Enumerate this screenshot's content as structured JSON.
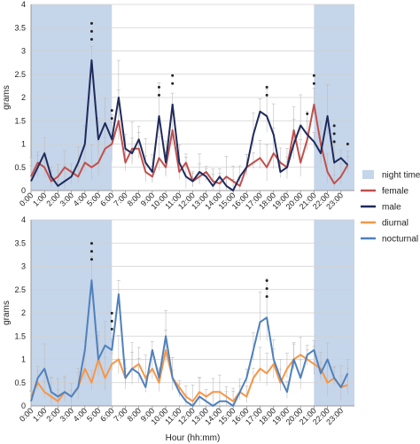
{
  "chart_data": [
    {
      "type": "line",
      "ylabel": "grams",
      "ylim": [
        0,
        4
      ],
      "y_ticks": [
        "0",
        "0.5",
        "1",
        "1.5",
        "2",
        "2.5",
        "3",
        "3.5",
        "4"
      ],
      "x_ticks": [
        "0:00",
        "1:00",
        "2:00",
        "3:00",
        "4:00",
        "5:00",
        "6:00",
        "7:00",
        "8:00",
        "9:00",
        "10:00",
        "11:00",
        "12:00",
        "13:00",
        "14:00",
        "15:00",
        "16:00",
        "17:00",
        "18:00",
        "19:00",
        "20:00",
        "21:00",
        "22:00",
        "23:00"
      ],
      "grid": true,
      "night_shading_hours": [
        [
          0,
          6
        ],
        [
          21,
          24
        ]
      ],
      "x": [
        0,
        0.5,
        1,
        1.5,
        2,
        2.5,
        3,
        3.5,
        4,
        4.5,
        5,
        5.5,
        6,
        6.5,
        7,
        7.5,
        8,
        8.5,
        9,
        9.5,
        10,
        10.5,
        11,
        11.5,
        12,
        12.5,
        13,
        13.5,
        14,
        14.5,
        15,
        15.5,
        16,
        16.5,
        17,
        17.5,
        18,
        18.5,
        19,
        19.5,
        20,
        20.5,
        21,
        21.5,
        22,
        22.5,
        23,
        23.5
      ],
      "series": [
        {
          "name": "female",
          "color": "#c0504d",
          "values": [
            0.3,
            0.6,
            0.5,
            0.2,
            0.3,
            0.5,
            0.4,
            0.3,
            0.6,
            0.5,
            0.6,
            0.9,
            1.0,
            1.5,
            0.6,
            0.9,
            0.9,
            0.4,
            0.3,
            0.7,
            0.5,
            1.3,
            0.4,
            0.6,
            0.2,
            0.3,
            0.4,
            0.2,
            0.15,
            0.3,
            0.2,
            0.1,
            0.5,
            0.6,
            0.7,
            0.5,
            0.8,
            0.6,
            0.5,
            1.3,
            0.6,
            1.1,
            1.85,
            1.0,
            0.4,
            0.15,
            0.3,
            0.55
          ]
        },
        {
          "name": "male",
          "color": "#1f2a5c",
          "values": [
            0.2,
            0.5,
            0.8,
            0.3,
            0.1,
            0.2,
            0.3,
            0.6,
            1.0,
            2.8,
            1.1,
            1.45,
            1.1,
            2.0,
            0.9,
            0.8,
            1.1,
            0.6,
            0.4,
            1.6,
            0.6,
            1.85,
            0.6,
            0.3,
            0.2,
            0.4,
            0.3,
            0.1,
            0.3,
            0.1,
            0.0,
            0.3,
            0.5,
            1.2,
            1.7,
            1.6,
            1.2,
            0.4,
            0.5,
            1.0,
            1.4,
            1.2,
            1.05,
            0.8,
            1.6,
            0.6,
            0.7,
            0.55
          ]
        }
      ],
      "significance_markers": [
        {
          "x": 4.5,
          "label": "***"
        },
        {
          "x": 6,
          "label": "**"
        },
        {
          "x": 9.5,
          "label": "**"
        },
        {
          "x": 10.5,
          "label": "**"
        },
        {
          "x": 17.5,
          "label": "**"
        },
        {
          "x": 20.5,
          "label": "*"
        },
        {
          "x": 21,
          "label": "**"
        },
        {
          "x": 22.5,
          "label": "***"
        },
        {
          "x": 23.5,
          "label": "*"
        }
      ]
    },
    {
      "type": "line",
      "ylabel": "grams",
      "xlabel": "Hour (hh:mm)",
      "ylim": [
        0,
        4
      ],
      "y_ticks": [
        "0",
        "0.5",
        "1",
        "1.5",
        "2",
        "2.5",
        "3",
        "3.5",
        "4"
      ],
      "x_ticks": [
        "0:00",
        "1:00",
        "2:00",
        "3:00",
        "4:00",
        "5:00",
        "6:00",
        "7:00",
        "8:00",
        "9:00",
        "10:00",
        "11:00",
        "12:00",
        "13:00",
        "14:00",
        "15:00",
        "16:00",
        "17:00",
        "18:00",
        "19:00",
        "20:00",
        "21:00",
        "22:00",
        "23:00"
      ],
      "grid": true,
      "night_shading_hours": [
        [
          0,
          6
        ],
        [
          21,
          24
        ]
      ],
      "x": [
        0,
        0.5,
        1,
        1.5,
        2,
        2.5,
        3,
        3.5,
        4,
        4.5,
        5,
        5.5,
        6,
        6.5,
        7,
        7.5,
        8,
        8.5,
        9,
        9.5,
        10,
        10.5,
        11,
        11.5,
        12,
        12.5,
        13,
        13.5,
        14,
        14.5,
        15,
        15.5,
        16,
        16.5,
        17,
        17.5,
        18,
        18.5,
        19,
        19.5,
        20,
        20.5,
        21,
        21.5,
        22,
        22.5,
        23,
        23.5
      ],
      "series": [
        {
          "name": "diurnal",
          "color": "#f79646",
          "values": [
            0.2,
            0.5,
            0.3,
            0.2,
            0.1,
            0.3,
            0.2,
            0.4,
            0.8,
            0.5,
            1.0,
            0.6,
            0.9,
            1.0,
            0.6,
            0.8,
            0.9,
            0.6,
            0.8,
            0.5,
            1.2,
            0.6,
            0.4,
            0.2,
            0.1,
            0.3,
            0.2,
            0.3,
            0.3,
            0.2,
            0.1,
            0.3,
            0.2,
            0.6,
            0.8,
            0.7,
            0.9,
            0.5,
            0.8,
            1.0,
            1.1,
            1.0,
            0.9,
            0.8,
            0.5,
            0.6,
            0.4,
            0.45
          ]
        },
        {
          "name": "nocturnal",
          "color": "#4f81bd",
          "values": [
            0.1,
            0.6,
            0.8,
            0.3,
            0.2,
            0.3,
            0.2,
            0.4,
            1.2,
            2.7,
            1.0,
            1.3,
            1.2,
            2.4,
            0.6,
            0.8,
            0.7,
            0.4,
            1.2,
            0.6,
            1.5,
            0.6,
            0.3,
            0.1,
            0.0,
            0.2,
            0.1,
            0.0,
            0.1,
            0.1,
            0.0,
            0.3,
            0.6,
            1.2,
            1.8,
            1.9,
            1.0,
            0.6,
            0.3,
            1.0,
            0.6,
            1.1,
            1.2,
            0.7,
            1.0,
            0.6,
            0.4,
            0.7
          ]
        }
      ],
      "significance_markers": [
        {
          "x": 4.5,
          "label": "***"
        },
        {
          "x": 6,
          "label": "***"
        },
        {
          "x": 17.5,
          "label": "***"
        }
      ]
    }
  ],
  "legend": {
    "placement": "right",
    "items": [
      {
        "label": "night time",
        "color": "#c5d5ea",
        "kind": "box"
      },
      {
        "label": "female",
        "color": "#c0504d",
        "kind": "line"
      },
      {
        "label": "male",
        "color": "#1f2a5c",
        "kind": "line"
      },
      {
        "label": "diurnal",
        "color": "#f79646",
        "kind": "line"
      },
      {
        "label": "nocturnal",
        "color": "#4f81bd",
        "kind": "line"
      }
    ]
  }
}
